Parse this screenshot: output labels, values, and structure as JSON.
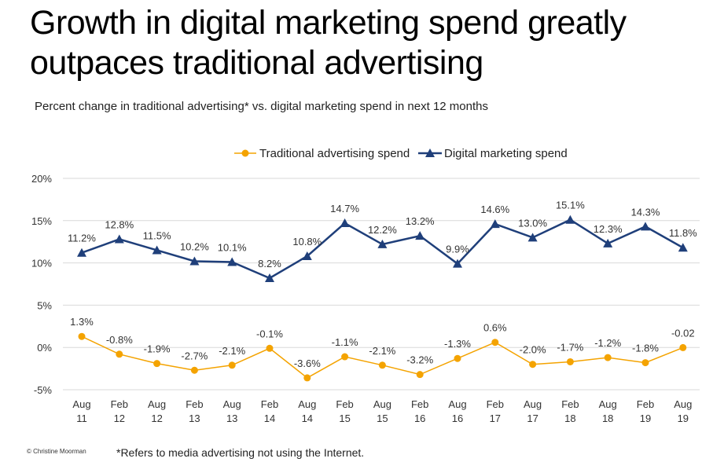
{
  "title_line1": "Growth in digital marketing spend greatly",
  "title_line2": "outpaces traditional advertising",
  "subtitle": "Percent change in traditional advertising* vs. digital marketing spend in next 12 months",
  "footnote": "*Refers to media advertising not using the Internet.",
  "copyright": "© Christine Moorman",
  "chart_data": {
    "type": "line",
    "title": "",
    "xlabel": "",
    "ylabel": "",
    "ylim": [
      -5,
      20
    ],
    "yticks": [
      "20%",
      "15%",
      "10%",
      "5%",
      "0%",
      "-5%"
    ],
    "ytick_values": [
      20,
      15,
      10,
      5,
      0,
      -5
    ],
    "grid": "horizontal",
    "legend_position": "top-center",
    "categories": [
      {
        "top": "Aug",
        "bottom": "11"
      },
      {
        "top": "Feb",
        "bottom": "12"
      },
      {
        "top": "Aug",
        "bottom": "12"
      },
      {
        "top": "Feb",
        "bottom": "13"
      },
      {
        "top": "Aug",
        "bottom": "13"
      },
      {
        "top": "Feb",
        "bottom": "14"
      },
      {
        "top": "Aug",
        "bottom": "14"
      },
      {
        "top": "Feb",
        "bottom": "15"
      },
      {
        "top": "Aug",
        "bottom": "15"
      },
      {
        "top": "Feb",
        "bottom": "16"
      },
      {
        "top": "Aug",
        "bottom": "16"
      },
      {
        "top": "Feb",
        "bottom": "17"
      },
      {
        "top": "Aug",
        "bottom": "17"
      },
      {
        "top": "Feb",
        "bottom": "18"
      },
      {
        "top": "Aug",
        "bottom": "18"
      },
      {
        "top": "Feb",
        "bottom": "19"
      },
      {
        "top": "Aug",
        "bottom": "19"
      }
    ],
    "series": [
      {
        "name": "Traditional advertising spend",
        "color": "#F4A300",
        "marker": "circle",
        "values": [
          1.3,
          -0.8,
          -1.9,
          -2.7,
          -2.1,
          -0.1,
          -3.6,
          -1.1,
          -2.1,
          -3.2,
          -1.3,
          0.6,
          -2.0,
          -1.7,
          -1.2,
          -1.8,
          -0.02
        ],
        "labels": [
          "1.3%",
          "-0.8%",
          "-1.9%",
          "-2.7%",
          "-2.1%",
          "-0.1%",
          "-3.6%",
          "-1.1%",
          "-2.1%",
          "-3.2%",
          "-1.3%",
          "0.6%",
          "-2.0%",
          "-1.7%",
          "-1.2%",
          "-1.8%",
          "-0.02"
        ]
      },
      {
        "name": "Digital marketing spend",
        "color": "#1F3F7A",
        "marker": "triangle",
        "values": [
          11.2,
          12.8,
          11.5,
          10.2,
          10.1,
          8.2,
          10.8,
          14.7,
          12.2,
          13.2,
          9.9,
          14.6,
          13.0,
          15.1,
          12.3,
          14.3,
          11.8
        ],
        "labels": [
          "11.2%",
          "12.8%",
          "11.5%",
          "10.2%",
          "10.1%",
          "8.2%",
          "10.8%",
          "14.7%",
          "12.2%",
          "13.2%",
          "9.9%",
          "14.6%",
          "13.0%",
          "15.1%",
          "12.3%",
          "14.3%",
          "11.8%"
        ]
      }
    ]
  }
}
